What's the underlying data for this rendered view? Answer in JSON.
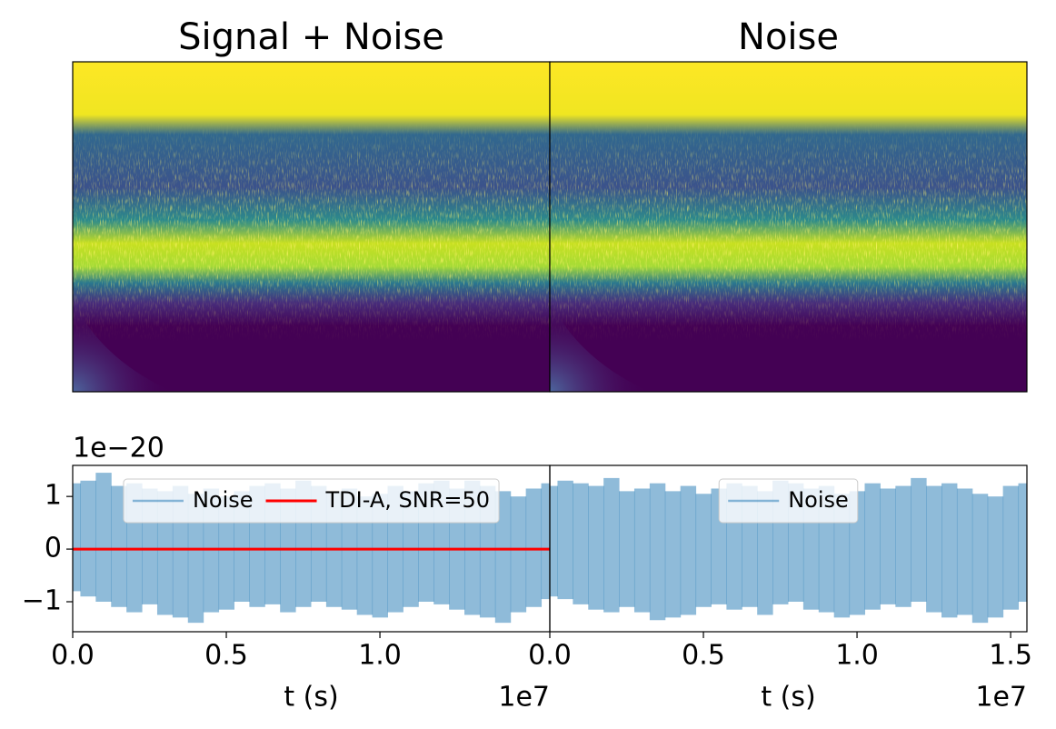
{
  "chart_data": [
    {
      "type": "spectrogram",
      "title": "Signal + Noise"
    },
    {
      "type": "spectrogram",
      "title": "Noise"
    },
    {
      "type": "line",
      "xlabel": "t (s)",
      "x_offset_label": "1e7",
      "y_offset_label": "1e−20",
      "xlim": [
        0,
        1.553
      ],
      "ylim": [
        -1.57,
        1.59
      ],
      "xticks": [
        {
          "value": 0,
          "label": "0.0"
        },
        0.5,
        {
          "value": 1,
          "label": "1.0"
        }
      ],
      "yticks": [
        {
          "value": -1,
          "label": "−1"
        },
        0,
        1
      ],
      "legend": "upper center",
      "series": [
        {
          "name": "Noise",
          "color": "#1f77b4",
          "alpha": 0.5,
          "kind": "band",
          "x": [
            0,
            0.05,
            0.1,
            0.15,
            0.2,
            0.25,
            0.3,
            0.35,
            0.4,
            0.45,
            0.5,
            0.55,
            0.6,
            0.65,
            0.7,
            0.75,
            0.8,
            0.85,
            0.9,
            0.95,
            1,
            1.05,
            1.1,
            1.15,
            1.2,
            1.25,
            1.3,
            1.35,
            1.4,
            1.45,
            1.5,
            1.55
          ],
          "upper": [
            1.25,
            1.3,
            1.45,
            1.2,
            1.25,
            1.15,
            1.1,
            1.2,
            1.05,
            1.15,
            1.0,
            1.1,
            1.2,
            1.25,
            1.15,
            1.3,
            1.2,
            1.1,
            1.15,
            1.0,
            1.05,
            1.2,
            1.1,
            1.25,
            1.3,
            1.15,
            1.3,
            1.2,
            1.1,
            1.0,
            1.15,
            1.25
          ],
          "lower": [
            -0.8,
            -0.9,
            -1.0,
            -1.1,
            -1.2,
            -1.05,
            -1.25,
            -1.3,
            -1.4,
            -1.2,
            -1.15,
            -1.0,
            -1.1,
            -1.05,
            -1.2,
            -1.1,
            -1.0,
            -1.1,
            -1.15,
            -1.25,
            -1.3,
            -1.2,
            -1.1,
            -1.0,
            -1.05,
            -1.15,
            -1.25,
            -1.3,
            -1.4,
            -1.2,
            -1.1,
            -0.95
          ]
        },
        {
          "name": "TDI-A, SNR=50",
          "color": "#ff0000",
          "kind": "line",
          "x": [
            0,
            1.553
          ],
          "values": [
            0,
            0
          ]
        }
      ]
    },
    {
      "type": "line",
      "xlabel": "t (s)",
      "x_offset_label": "1e7",
      "xlim": [
        0,
        1.553
      ],
      "ylim": [
        -1.57,
        1.59
      ],
      "xticks": [
        {
          "value": 0,
          "label": "0.0"
        },
        0.5,
        {
          "value": 1,
          "label": "1.0"
        },
        1.5
      ],
      "legend": "upper center",
      "series": [
        {
          "name": "Noise",
          "color": "#1f77b4",
          "alpha": 0.5,
          "kind": "band",
          "x": [
            0,
            0.05,
            0.1,
            0.15,
            0.2,
            0.25,
            0.3,
            0.35,
            0.4,
            0.45,
            0.5,
            0.55,
            0.6,
            0.65,
            0.7,
            0.75,
            0.8,
            0.85,
            0.9,
            0.95,
            1,
            1.05,
            1.1,
            1.15,
            1.2,
            1.25,
            1.3,
            1.35,
            1.4,
            1.45,
            1.5,
            1.55
          ],
          "upper": [
            1.2,
            1.3,
            1.25,
            1.2,
            1.35,
            1.1,
            1.15,
            1.25,
            1.1,
            1.2,
            1.05,
            1.15,
            1.25,
            1.2,
            1.1,
            1.3,
            1.25,
            1.15,
            1.2,
            1.05,
            1.1,
            1.25,
            1.15,
            1.2,
            1.35,
            1.2,
            1.25,
            1.15,
            1.05,
            1.0,
            1.2,
            1.25
          ],
          "lower": [
            -0.9,
            -0.95,
            -1.05,
            -1.15,
            -1.2,
            -1.1,
            -1.2,
            -1.35,
            -1.3,
            -1.25,
            -1.1,
            -1.05,
            -1.15,
            -1.1,
            -1.25,
            -1.05,
            -1.0,
            -1.15,
            -1.2,
            -1.3,
            -1.25,
            -1.15,
            -1.05,
            -1.1,
            -1.0,
            -1.2,
            -1.3,
            -1.25,
            -1.4,
            -1.3,
            -1.15,
            -1.0
          ]
        }
      ]
    }
  ]
}
